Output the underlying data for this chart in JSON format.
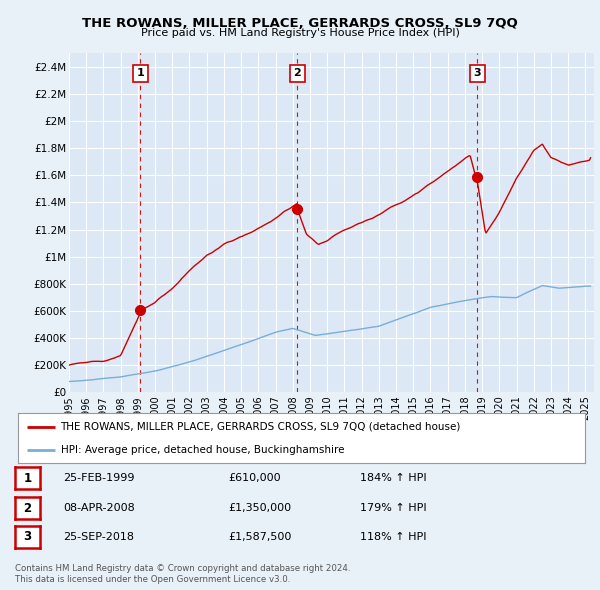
{
  "title": "THE ROWANS, MILLER PLACE, GERRARDS CROSS, SL9 7QQ",
  "subtitle": "Price paid vs. HM Land Registry's House Price Index (HPI)",
  "ylabel_ticks": [
    "£0",
    "£200K",
    "£400K",
    "£600K",
    "£800K",
    "£1M",
    "£1.2M",
    "£1.4M",
    "£1.6M",
    "£1.8M",
    "£2M",
    "£2.2M",
    "£2.4M"
  ],
  "ytick_values": [
    0,
    200000,
    400000,
    600000,
    800000,
    1000000,
    1200000,
    1400000,
    1600000,
    1800000,
    2000000,
    2200000,
    2400000
  ],
  "ylim": [
    0,
    2500000
  ],
  "xlim_start": 1995.0,
  "xlim_end": 2025.5,
  "sale_color": "#cc0000",
  "hpi_color": "#7aaed6",
  "vline_color": "#cc0000",
  "bg_color": "#e8f0f8",
  "plot_bg": "#dce8f5",
  "grid_color": "#ffffff",
  "sale_dates": [
    1999.15,
    2008.27,
    2018.73
  ],
  "sale_prices": [
    610000,
    1350000,
    1587500
  ],
  "sale_labels": [
    "1",
    "2",
    "3"
  ],
  "legend_entries": [
    "THE ROWANS, MILLER PLACE, GERRARDS CROSS, SL9 7QQ (detached house)",
    "HPI: Average price, detached house, Buckinghamshire"
  ],
  "table_rows": [
    [
      "1",
      "25-FEB-1999",
      "£610,000",
      "184% ↑ HPI"
    ],
    [
      "2",
      "08-APR-2008",
      "£1,350,000",
      "179% ↑ HPI"
    ],
    [
      "3",
      "25-SEP-2018",
      "£1,587,500",
      "118% ↑ HPI"
    ]
  ],
  "footnote1": "Contains HM Land Registry data © Crown copyright and database right 2024.",
  "footnote2": "This data is licensed under the Open Government Licence v3.0."
}
